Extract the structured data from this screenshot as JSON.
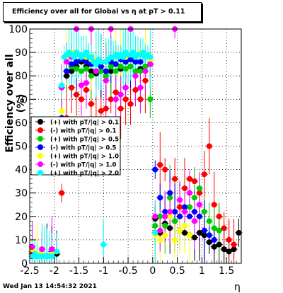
{
  "chart_data": {
    "type": "scatter",
    "title": "Efficiency over all for Global vs  η at pT > 0.11",
    "xlabel": "η",
    "ylabel": "Efficiency over all (%)",
    "xlim": [
      -2.5,
      1.8
    ],
    "ylim": [
      0,
      100
    ],
    "x_ticks": [
      "-2.5",
      "-2",
      "-1.5",
      "-1",
      "-0.5",
      "0",
      "0.5",
      "1",
      "1.5"
    ],
    "y_ticks": [
      "0",
      "10",
      "20",
      "30",
      "40",
      "50",
      "60",
      "70",
      "80",
      "90",
      "100"
    ],
    "grid": true,
    "legend_position": "left-middle",
    "series": [
      {
        "name": "(+) with pT/|q| > 0.1",
        "color": "#000000",
        "points": [
          [
            -2.45,
            4
          ],
          [
            -2.35,
            3
          ],
          [
            -2.25,
            4
          ],
          [
            -2.15,
            3
          ],
          [
            -2.05,
            4
          ],
          [
            -1.95,
            4
          ],
          [
            -1.85,
            62
          ],
          [
            -1.75,
            80
          ],
          [
            -1.65,
            82
          ],
          [
            -1.55,
            84
          ],
          [
            -1.45,
            86
          ],
          [
            -1.35,
            84
          ],
          [
            -1.25,
            82
          ],
          [
            -1.15,
            81
          ],
          [
            -1.05,
            84
          ],
          [
            -0.95,
            82
          ],
          [
            -0.85,
            82
          ],
          [
            -0.75,
            85
          ],
          [
            -0.65,
            83
          ],
          [
            -0.55,
            86
          ],
          [
            -0.45,
            84
          ],
          [
            -0.35,
            86
          ],
          [
            -0.25,
            83
          ],
          [
            -0.15,
            84
          ],
          [
            -0.05,
            85
          ],
          [
            0.05,
            19
          ],
          [
            0.15,
            13
          ],
          [
            0.25,
            17
          ],
          [
            0.35,
            15
          ],
          [
            0.45,
            18
          ],
          [
            0.55,
            14
          ],
          [
            0.65,
            13
          ],
          [
            0.75,
            12
          ],
          [
            0.85,
            11
          ],
          [
            0.95,
            13
          ],
          [
            1.05,
            12
          ],
          [
            1.15,
            9
          ],
          [
            1.25,
            7
          ],
          [
            1.35,
            8
          ],
          [
            1.45,
            6
          ],
          [
            1.55,
            5
          ],
          [
            1.65,
            6
          ],
          [
            1.75,
            13
          ]
        ]
      },
      {
        "name": "(-) with pT/|q| > 0.1",
        "color": "#ff0000",
        "points": [
          [
            -2.45,
            5
          ],
          [
            -2.25,
            3
          ],
          [
            -2.05,
            4
          ],
          [
            -1.85,
            30
          ],
          [
            -1.75,
            62
          ],
          [
            -1.65,
            75
          ],
          [
            -1.55,
            72
          ],
          [
            -1.45,
            70
          ],
          [
            -1.35,
            74
          ],
          [
            -1.25,
            68
          ],
          [
            -1.15,
            60
          ],
          [
            -1.05,
            65
          ],
          [
            -0.95,
            66
          ],
          [
            -0.85,
            70
          ],
          [
            -0.75,
            73
          ],
          [
            -0.65,
            66
          ],
          [
            -0.55,
            70
          ],
          [
            -0.45,
            68
          ],
          [
            -0.35,
            74
          ],
          [
            -0.25,
            70
          ],
          [
            -0.15,
            78
          ],
          [
            0.05,
            13
          ],
          [
            0.15,
            42
          ],
          [
            0.25,
            40
          ],
          [
            0.35,
            30
          ],
          [
            0.45,
            36
          ],
          [
            0.55,
            24
          ],
          [
            0.65,
            32
          ],
          [
            0.75,
            36
          ],
          [
            0.85,
            35
          ],
          [
            0.95,
            30
          ],
          [
            1.05,
            38
          ],
          [
            1.15,
            50
          ],
          [
            1.25,
            25
          ],
          [
            1.35,
            20
          ],
          [
            1.45,
            15
          ],
          [
            1.55,
            10
          ],
          [
            1.65,
            8
          ]
        ]
      },
      {
        "name": "(+) with pT/|q| > 0.5",
        "color": "#00cc00",
        "points": [
          [
            -2.45,
            3
          ],
          [
            -2.25,
            3
          ],
          [
            -2.05,
            3
          ],
          [
            -1.85,
            60
          ],
          [
            -1.75,
            82
          ],
          [
            -1.65,
            84
          ],
          [
            -1.55,
            83
          ],
          [
            -1.45,
            82
          ],
          [
            -1.35,
            83
          ],
          [
            -1.25,
            80
          ],
          [
            -1.15,
            82
          ],
          [
            -1.05,
            82
          ],
          [
            -0.95,
            80
          ],
          [
            -0.85,
            84
          ],
          [
            -0.75,
            82
          ],
          [
            -0.65,
            84
          ],
          [
            -0.55,
            83
          ],
          [
            -0.45,
            84
          ],
          [
            -0.35,
            82
          ],
          [
            -0.25,
            82
          ],
          [
            -0.15,
            84
          ],
          [
            -0.05,
            70
          ],
          [
            0.05,
            16
          ],
          [
            0.15,
            20
          ],
          [
            0.25,
            16
          ],
          [
            0.35,
            28
          ],
          [
            0.45,
            18
          ],
          [
            0.55,
            20
          ],
          [
            0.65,
            22
          ],
          [
            0.75,
            24
          ],
          [
            0.85,
            28
          ],
          [
            0.95,
            32
          ],
          [
            1.05,
            22
          ],
          [
            1.15,
            18
          ],
          [
            1.25,
            15
          ],
          [
            1.35,
            14
          ]
        ]
      },
      {
        "name": "(-) with pT/|q| > 0.5",
        "color": "#0000ff",
        "points": [
          [
            -2.45,
            3
          ],
          [
            -2.25,
            4
          ],
          [
            -2.05,
            5
          ],
          [
            -1.85,
            62
          ],
          [
            -1.75,
            82
          ],
          [
            -1.65,
            85
          ],
          [
            -1.55,
            86
          ],
          [
            -1.45,
            87
          ],
          [
            -1.35,
            86
          ],
          [
            -1.25,
            85
          ],
          [
            -1.15,
            86
          ],
          [
            -1.05,
            84
          ],
          [
            -0.95,
            82
          ],
          [
            -0.85,
            86
          ],
          [
            -0.75,
            85
          ],
          [
            -0.65,
            87
          ],
          [
            -0.55,
            86
          ],
          [
            -0.45,
            87
          ],
          [
            -0.35,
            86
          ],
          [
            -0.25,
            86
          ],
          [
            -0.15,
            88
          ],
          [
            -0.05,
            85
          ],
          [
            0.05,
            40
          ],
          [
            0.15,
            28
          ],
          [
            0.25,
            22
          ],
          [
            0.35,
            30
          ],
          [
            0.45,
            22
          ],
          [
            0.55,
            20
          ],
          [
            0.65,
            24
          ],
          [
            0.75,
            20
          ],
          [
            0.85,
            22
          ],
          [
            0.95,
            20
          ],
          [
            1.05,
            14
          ],
          [
            1.15,
            12
          ],
          [
            1.25,
            10
          ]
        ]
      },
      {
        "name": "(+) with pT/|q| > 1.0",
        "color": "#ffff00",
        "points": [
          [
            -2.45,
            6
          ],
          [
            -2.35,
            4
          ],
          [
            -2.25,
            4
          ],
          [
            -2.05,
            4
          ],
          [
            -1.85,
            65
          ],
          [
            -1.75,
            88
          ],
          [
            -1.65,
            90
          ],
          [
            -1.55,
            89
          ],
          [
            -1.45,
            88
          ],
          [
            -1.35,
            88
          ],
          [
            -1.25,
            87
          ],
          [
            -1.15,
            87
          ],
          [
            -1.05,
            86
          ],
          [
            -0.95,
            86
          ],
          [
            -0.85,
            88
          ],
          [
            -0.75,
            88
          ],
          [
            -0.65,
            89
          ],
          [
            -0.55,
            88
          ],
          [
            -0.45,
            89
          ],
          [
            -0.35,
            88
          ],
          [
            -0.25,
            90
          ],
          [
            -0.15,
            89
          ],
          [
            -0.05,
            87
          ],
          [
            0.05,
            12
          ],
          [
            0.15,
            10
          ],
          [
            0.25,
            12
          ],
          [
            0.35,
            20
          ],
          [
            0.45,
            10
          ],
          [
            0.55,
            14
          ],
          [
            0.65,
            16
          ],
          [
            0.75,
            12
          ],
          [
            0.85,
            18
          ]
        ]
      },
      {
        "name": "(-) with pT/|q| > 1.0",
        "color": "#ff00ff",
        "points": [
          [
            -2.45,
            7
          ],
          [
            -2.25,
            6
          ],
          [
            -2.05,
            6
          ],
          [
            -1.85,
            75
          ],
          [
            -1.75,
            86
          ],
          [
            -1.65,
            88
          ],
          [
            -1.55,
            100
          ],
          [
            -1.45,
            76
          ],
          [
            -1.35,
            77
          ],
          [
            -1.25,
            100
          ],
          [
            -1.15,
            82
          ],
          [
            -1.05,
            86
          ],
          [
            -0.95,
            78
          ],
          [
            -0.85,
            100
          ],
          [
            -0.75,
            70
          ],
          [
            -0.65,
            72
          ],
          [
            -0.55,
            75
          ],
          [
            -0.45,
            100
          ],
          [
            -0.35,
            80
          ],
          [
            -0.25,
            75
          ],
          [
            -0.15,
            82
          ],
          [
            -0.05,
            85
          ],
          [
            0.05,
            20
          ],
          [
            0.15,
            14
          ],
          [
            0.25,
            20
          ],
          [
            0.35,
            22
          ],
          [
            0.45,
            100
          ],
          [
            0.55,
            27
          ],
          [
            0.65,
            22
          ],
          [
            0.75,
            30
          ],
          [
            0.85,
            18
          ],
          [
            0.95,
            25
          ]
        ]
      },
      {
        "name": "(+) with pT/|q| > 2.0",
        "color": "#00ffff",
        "points": [
          [
            -2.45,
            3
          ],
          [
            -2.4,
            4
          ],
          [
            -2.35,
            3
          ],
          [
            -2.3,
            3
          ],
          [
            -2.25,
            3
          ],
          [
            -2.2,
            3
          ],
          [
            -2.15,
            3
          ],
          [
            -2.1,
            3
          ],
          [
            -2.05,
            3
          ],
          [
            -1.95,
            5
          ],
          [
            -1.85,
            76
          ],
          [
            -1.8,
            88
          ],
          [
            -1.75,
            89
          ],
          [
            -1.7,
            90
          ],
          [
            -1.65,
            89
          ],
          [
            -1.6,
            88
          ],
          [
            -1.55,
            90
          ],
          [
            -1.5,
            89
          ],
          [
            -1.45,
            88
          ],
          [
            -1.4,
            89
          ],
          [
            -1.35,
            90
          ],
          [
            -1.3,
            88
          ],
          [
            -1.25,
            88
          ],
          [
            -1.2,
            86
          ],
          [
            -1.15,
            85
          ],
          [
            -1.1,
            87
          ],
          [
            -1.05,
            86
          ],
          [
            -1.0,
            8
          ],
          [
            -0.95,
            86
          ],
          [
            -0.9,
            87
          ],
          [
            -0.85,
            88
          ],
          [
            -0.8,
            88
          ],
          [
            -0.75,
            89
          ],
          [
            -0.7,
            88
          ],
          [
            -0.65,
            89
          ],
          [
            -0.6,
            88
          ],
          [
            -0.55,
            90
          ],
          [
            -0.5,
            89
          ],
          [
            -0.45,
            89
          ],
          [
            -0.4,
            90
          ],
          [
            -0.35,
            88
          ],
          [
            -0.3,
            89
          ],
          [
            -0.25,
            89
          ],
          [
            -0.2,
            90
          ],
          [
            -0.15,
            88
          ],
          [
            -0.1,
            89
          ],
          [
            -0.05,
            88
          ],
          [
            0.05,
            13
          ]
        ]
      }
    ]
  },
  "footer": {
    "timestamp": "Wed Jan 13 14:54:32 2021"
  }
}
